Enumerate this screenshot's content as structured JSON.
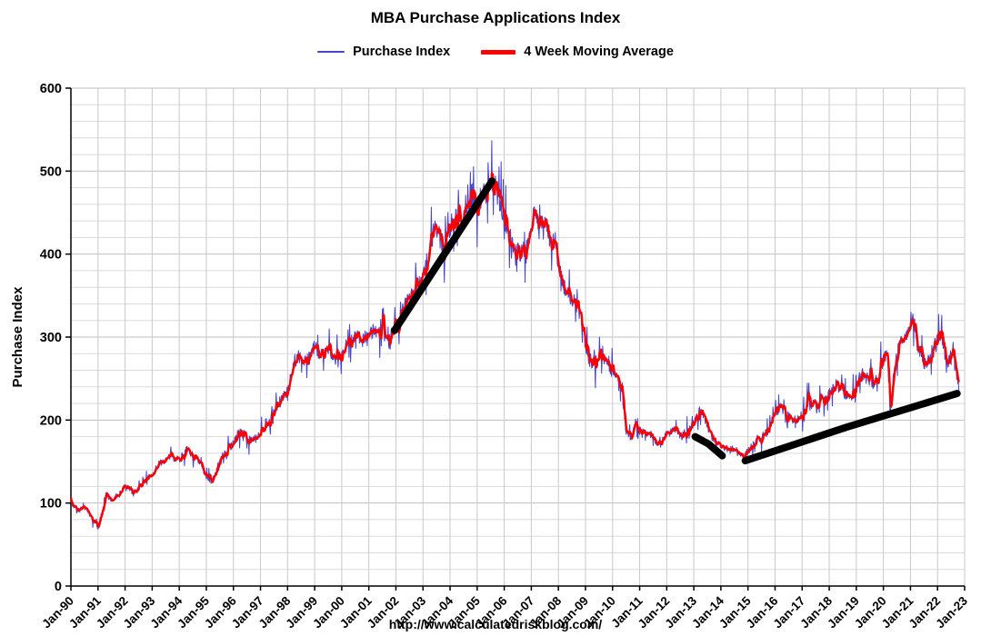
{
  "header": {
    "title": "MBA Purchase Applications Index"
  },
  "legend": {
    "items": [
      {
        "label": "Purchase Index",
        "color": "#4444cc",
        "swatch_w": 30,
        "swatch_h": 2
      },
      {
        "label": "4 Week Moving Average",
        "color": "#ff0000",
        "swatch_w": 38,
        "swatch_h": 5
      }
    ]
  },
  "footer": {
    "url": "http://www.calculatedriskblog.com/"
  },
  "chart_data": {
    "type": "line",
    "title": "MBA Purchase Applications Index",
    "xlabel": "",
    "ylabel": "Purchase Index",
    "ylim": [
      0,
      600
    ],
    "y_major_step": 100,
    "y_minor_step": 20,
    "grid": true,
    "legend_position": "top-center",
    "x_start": 1990.0,
    "x_end": 2022.8,
    "x_ticks": [
      "Jan-90",
      "Jan-91",
      "Jan-92",
      "Jan-93",
      "Jan-94",
      "Jan-95",
      "Jan-96",
      "Jan-97",
      "Jan-98",
      "Jan-99",
      "Jan-00",
      "Jan-01",
      "Jan-02",
      "Jan-03",
      "Jan-04",
      "Jan-05",
      "Jan-06",
      "Jan-07",
      "Jan-08",
      "Jan-09",
      "Jan-10",
      "Jan-11",
      "Jan-12",
      "Jan-13",
      "Jan-14",
      "Jan-15",
      "Jan-16",
      "Jan-17",
      "Jan-18",
      "Jan-19",
      "Jan-20",
      "Jan-21",
      "Jan-22",
      "Jan-23"
    ],
    "series": [
      {
        "name": "Purchase Index",
        "color": "#4444cc",
        "width": 1,
        "kind": "weekly-noisy"
      },
      {
        "name": "4 Week Moving Average",
        "color": "#ff0000",
        "width": 2.4,
        "kind": "moving-average-4"
      }
    ],
    "anchors": [
      [
        1990.0,
        100
      ],
      [
        1990.25,
        92
      ],
      [
        1990.5,
        95
      ],
      [
        1990.75,
        82
      ],
      [
        1991.0,
        70
      ],
      [
        1991.15,
        90
      ],
      [
        1991.3,
        112
      ],
      [
        1991.5,
        103
      ],
      [
        1991.75,
        108
      ],
      [
        1992.0,
        122
      ],
      [
        1992.25,
        113
      ],
      [
        1992.5,
        118
      ],
      [
        1992.75,
        128
      ],
      [
        1993.0,
        134
      ],
      [
        1993.25,
        148
      ],
      [
        1993.5,
        152
      ],
      [
        1993.75,
        158
      ],
      [
        1994.0,
        152
      ],
      [
        1994.25,
        165
      ],
      [
        1994.5,
        158
      ],
      [
        1994.75,
        148
      ],
      [
        1995.0,
        132
      ],
      [
        1995.2,
        126
      ],
      [
        1995.4,
        142
      ],
      [
        1995.6,
        158
      ],
      [
        1995.8,
        162
      ],
      [
        1996.0,
        172
      ],
      [
        1996.25,
        186
      ],
      [
        1996.5,
        180
      ],
      [
        1996.75,
        176
      ],
      [
        1997.0,
        182
      ],
      [
        1997.25,
        196
      ],
      [
        1997.5,
        208
      ],
      [
        1997.75,
        222
      ],
      [
        1998.0,
        238
      ],
      [
        1998.2,
        262
      ],
      [
        1998.4,
        278
      ],
      [
        1998.6,
        268
      ],
      [
        1998.8,
        276
      ],
      [
        1999.0,
        288
      ],
      [
        1999.25,
        278
      ],
      [
        1999.5,
        285
      ],
      [
        1999.75,
        272
      ],
      [
        2000.0,
        282
      ],
      [
        2000.25,
        296
      ],
      [
        2000.5,
        302
      ],
      [
        2000.75,
        296
      ],
      [
        2001.0,
        306
      ],
      [
        2001.25,
        300
      ],
      [
        2001.5,
        306
      ],
      [
        2001.75,
        298
      ],
      [
        2002.0,
        312
      ],
      [
        2002.25,
        332
      ],
      [
        2002.5,
        352
      ],
      [
        2002.75,
        356
      ],
      [
        2003.0,
        372
      ],
      [
        2003.2,
        398
      ],
      [
        2003.4,
        432
      ],
      [
        2003.6,
        422
      ],
      [
        2003.8,
        405
      ],
      [
        2004.0,
        432
      ],
      [
        2004.2,
        452
      ],
      [
        2004.4,
        442
      ],
      [
        2004.6,
        452
      ],
      [
        2004.8,
        458
      ],
      [
        2005.0,
        462
      ],
      [
        2005.2,
        472
      ],
      [
        2005.4,
        482
      ],
      [
        2005.55,
        490
      ],
      [
        2005.7,
        478
      ],
      [
        2005.9,
        458
      ],
      [
        2006.0,
        442
      ],
      [
        2006.2,
        420
      ],
      [
        2006.4,
        408
      ],
      [
        2006.6,
        400
      ],
      [
        2006.8,
        406
      ],
      [
        2007.0,
        432
      ],
      [
        2007.1,
        446
      ],
      [
        2007.3,
        440
      ],
      [
        2007.5,
        434
      ],
      [
        2007.7,
        420
      ],
      [
        2007.9,
        408
      ],
      [
        2008.0,
        388
      ],
      [
        2008.2,
        362
      ],
      [
        2008.4,
        346
      ],
      [
        2008.6,
        340
      ],
      [
        2008.8,
        328
      ],
      [
        2009.0,
        292
      ],
      [
        2009.2,
        264
      ],
      [
        2009.4,
        272
      ],
      [
        2009.6,
        280
      ],
      [
        2009.8,
        268
      ],
      [
        2010.0,
        258
      ],
      [
        2010.2,
        252
      ],
      [
        2010.35,
        238
      ],
      [
        2010.5,
        186
      ],
      [
        2010.7,
        180
      ],
      [
        2010.9,
        196
      ],
      [
        2011.0,
        190
      ],
      [
        2011.25,
        186
      ],
      [
        2011.5,
        180
      ],
      [
        2011.75,
        170
      ],
      [
        2012.0,
        184
      ],
      [
        2012.25,
        190
      ],
      [
        2012.5,
        180
      ],
      [
        2012.75,
        184
      ],
      [
        2013.0,
        196
      ],
      [
        2013.2,
        210
      ],
      [
        2013.4,
        204
      ],
      [
        2013.6,
        184
      ],
      [
        2013.8,
        174
      ],
      [
        2014.0,
        168
      ],
      [
        2014.25,
        164
      ],
      [
        2014.5,
        166
      ],
      [
        2014.75,
        156
      ],
      [
        2015.0,
        162
      ],
      [
        2015.25,
        176
      ],
      [
        2015.5,
        180
      ],
      [
        2015.75,
        186
      ],
      [
        2016.0,
        210
      ],
      [
        2016.2,
        214
      ],
      [
        2016.5,
        204
      ],
      [
        2016.75,
        200
      ],
      [
        2017.0,
        206
      ],
      [
        2017.25,
        224
      ],
      [
        2017.5,
        218
      ],
      [
        2017.75,
        224
      ],
      [
        2018.0,
        234
      ],
      [
        2018.25,
        244
      ],
      [
        2018.5,
        234
      ],
      [
        2018.75,
        228
      ],
      [
        2019.0,
        236
      ],
      [
        2019.2,
        256
      ],
      [
        2019.4,
        250
      ],
      [
        2019.6,
        244
      ],
      [
        2019.8,
        250
      ],
      [
        2020.0,
        272
      ],
      [
        2020.15,
        282
      ],
      [
        2020.25,
        205
      ],
      [
        2020.4,
        262
      ],
      [
        2020.6,
        298
      ],
      [
        2020.8,
        296
      ],
      [
        2021.0,
        318
      ],
      [
        2021.1,
        326
      ],
      [
        2021.3,
        288
      ],
      [
        2021.5,
        268
      ],
      [
        2021.7,
        274
      ],
      [
        2021.9,
        292
      ],
      [
        2022.0,
        296
      ],
      [
        2022.1,
        305
      ],
      [
        2022.25,
        288
      ],
      [
        2022.4,
        268
      ],
      [
        2022.55,
        292
      ],
      [
        2022.7,
        258
      ],
      [
        2022.8,
        240
      ]
    ],
    "annotations": [
      {
        "label": "housing-bubble-uptrend",
        "color": "#000000",
        "width": 8,
        "points": [
          [
            2001.95,
            308
          ],
          [
            2005.55,
            488
          ]
        ]
      },
      {
        "label": "2013-2014-decline",
        "color": "#000000",
        "width": 8,
        "points": [
          [
            2013.05,
            180
          ],
          [
            2013.55,
            171
          ],
          [
            2014.05,
            157
          ]
        ]
      },
      {
        "label": "2015-2022-uptrend",
        "color": "#000000",
        "width": 8,
        "points": [
          [
            2014.9,
            151
          ],
          [
            2018.6,
            191
          ],
          [
            2022.72,
            232
          ]
        ]
      }
    ]
  }
}
